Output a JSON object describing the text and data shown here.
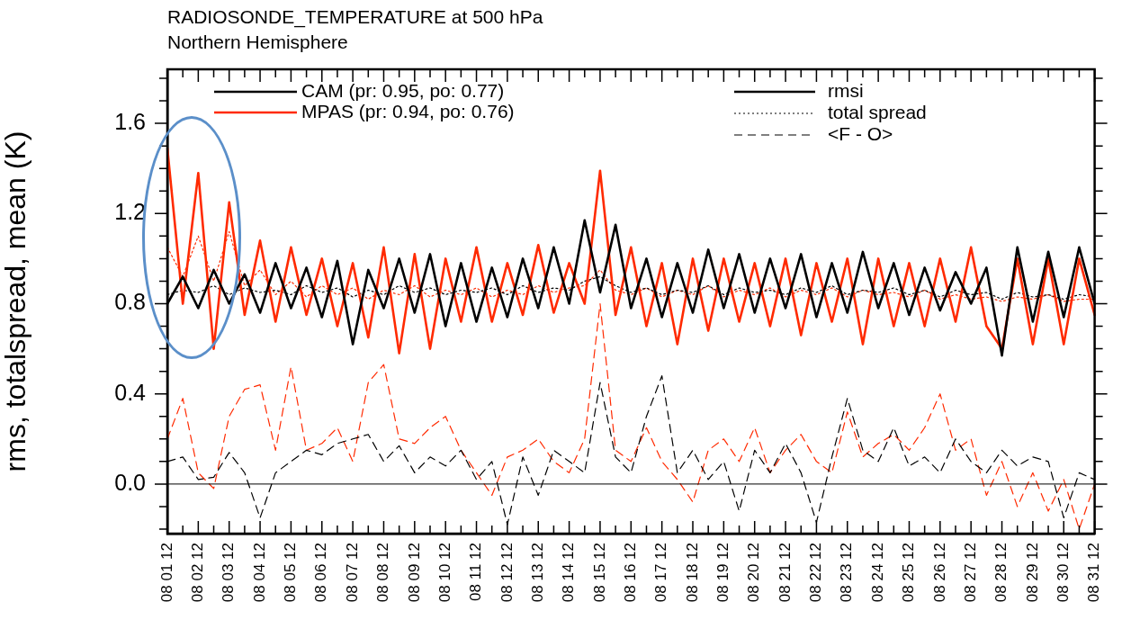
{
  "chart_data": {
    "type": "line",
    "title": "RADIOSONDE_TEMPERATURE at 500 hPa",
    "subtitle": "Northern Hemisphere",
    "ylabel": "rms, totalspread, mean (K)",
    "categories": [
      "08 01 12",
      null,
      "08 02 12",
      null,
      "08 03 12",
      null,
      "08 04 12",
      null,
      "08 05 12",
      null,
      "08 06 12",
      null,
      "08 07 12",
      null,
      "08 08 12",
      null,
      "08 09 12",
      null,
      "08 10 12",
      null,
      "08 11 12",
      null,
      "08 12 12",
      null,
      "08 13 12",
      null,
      "08 14 12",
      null,
      "08 15 12",
      null,
      "08 16 12",
      null,
      "08 17 12",
      null,
      "08 18 12",
      null,
      "08 19 12",
      null,
      "08 20 12",
      null,
      "08 21 12",
      null,
      "08 22 12",
      null,
      "08 23 12",
      null,
      "08 24 12",
      null,
      "08 25 12",
      null,
      "08 26 12",
      null,
      "08 27 12",
      null,
      "08 28 12",
      null,
      "08 29 12",
      null,
      "08 30 12",
      null,
      "08 31 12"
    ],
    "series": [
      {
        "name": "CAM (pr: 0.95, po: 0.77)",
        "color": "#000000",
        "line_style": "solid",
        "values": [
          0.8,
          0.92,
          0.78,
          0.95,
          0.8,
          0.93,
          0.76,
          0.98,
          0.78,
          0.96,
          0.74,
          0.99,
          0.62,
          0.95,
          0.78,
          1.0,
          0.76,
          1.02,
          0.7,
          0.98,
          0.72,
          0.96,
          0.74,
          1.0,
          0.78,
          1.05,
          0.8,
          1.17,
          0.85,
          1.15,
          0.78,
          1.0,
          0.74,
          0.98,
          0.76,
          1.04,
          0.78,
          1.02,
          0.76,
          1.0,
          0.78,
          1.02,
          0.74,
          0.98,
          0.76,
          1.03,
          0.78,
          0.98,
          0.75,
          0.96,
          0.77,
          0.94,
          0.8,
          0.96,
          0.57,
          1.05,
          0.72,
          1.03,
          0.74,
          1.05,
          0.8
        ]
      },
      {
        "name": "MPAS (pr: 0.94, po: 0.76)",
        "color": "#ff2a00",
        "line_style": "solid",
        "values": [
          1.49,
          0.8,
          1.38,
          0.6,
          1.25,
          0.75,
          1.08,
          0.72,
          1.05,
          0.75,
          1.0,
          0.7,
          0.98,
          0.65,
          1.05,
          0.58,
          1.02,
          0.6,
          1.0,
          0.72,
          1.05,
          0.72,
          0.98,
          0.75,
          1.06,
          0.76,
          0.98,
          0.8,
          1.39,
          0.75,
          1.05,
          0.7,
          0.98,
          0.62,
          1.0,
          0.68,
          1.0,
          0.72,
          0.98,
          0.7,
          1.0,
          0.66,
          0.98,
          0.72,
          1.0,
          0.62,
          1.0,
          0.7,
          0.98,
          0.7,
          1.0,
          0.72,
          1.05,
          0.7,
          0.6,
          1.0,
          0.62,
          1.0,
          0.62,
          1.0,
          0.75
        ]
      },
      {
        "color": "#000000",
        "line_style": "dotted",
        "values": [
          0.84,
          0.86,
          0.85,
          0.88,
          0.84,
          0.87,
          0.85,
          0.86,
          0.84,
          0.88,
          0.85,
          0.87,
          0.83,
          0.86,
          0.84,
          0.88,
          0.85,
          0.87,
          0.84,
          0.86,
          0.85,
          0.87,
          0.84,
          0.88,
          0.85,
          0.87,
          0.86,
          0.9,
          0.92,
          0.88,
          0.85,
          0.87,
          0.84,
          0.86,
          0.85,
          0.88,
          0.84,
          0.87,
          0.85,
          0.86,
          0.84,
          0.87,
          0.85,
          0.88,
          0.84,
          0.86,
          0.85,
          0.87,
          0.84,
          0.86,
          0.83,
          0.86,
          0.84,
          0.85,
          0.82,
          0.85,
          0.83,
          0.84,
          0.82,
          0.84,
          0.83
        ]
      },
      {
        "color": "#ff2a00",
        "line_style": "dotted",
        "values": [
          1.05,
          0.92,
          1.1,
          0.9,
          1.12,
          0.88,
          0.95,
          0.84,
          0.9,
          0.83,
          0.88,
          0.84,
          0.87,
          0.82,
          0.86,
          0.84,
          0.88,
          0.83,
          0.86,
          0.84,
          0.87,
          0.83,
          0.86,
          0.84,
          0.88,
          0.85,
          0.87,
          0.88,
          0.95,
          0.86,
          0.84,
          0.87,
          0.83,
          0.86,
          0.84,
          0.88,
          0.83,
          0.86,
          0.84,
          0.87,
          0.83,
          0.86,
          0.84,
          0.87,
          0.83,
          0.86,
          0.84,
          0.85,
          0.83,
          0.86,
          0.82,
          0.84,
          0.82,
          0.83,
          0.81,
          0.83,
          0.82,
          0.84,
          0.81,
          0.82,
          0.82
        ]
      },
      {
        "color": "#000000",
        "line_style": "dashed",
        "values": [
          0.1,
          0.12,
          0.02,
          0.03,
          0.14,
          0.05,
          -0.15,
          0.05,
          0.1,
          0.15,
          0.13,
          0.18,
          0.2,
          0.22,
          0.1,
          0.17,
          0.05,
          0.12,
          0.08,
          0.15,
          0.02,
          0.1,
          -0.18,
          0.12,
          -0.05,
          0.15,
          0.1,
          0.05,
          0.45,
          0.12,
          0.05,
          0.3,
          0.48,
          0.05,
          0.15,
          0.02,
          0.1,
          -0.12,
          0.15,
          0.05,
          0.18,
          0.05,
          -0.17,
          0.12,
          0.38,
          0.15,
          0.1,
          0.25,
          0.08,
          0.12,
          0.05,
          0.2,
          0.1,
          0.05,
          0.15,
          0.08,
          0.12,
          0.1,
          -0.15,
          0.05,
          0.02
        ]
      },
      {
        "color": "#ff2a00",
        "line_style": "dashed",
        "values": [
          0.2,
          0.38,
          0.05,
          -0.02,
          0.3,
          0.42,
          0.44,
          0.15,
          0.52,
          0.15,
          0.18,
          0.25,
          0.1,
          0.45,
          0.53,
          0.2,
          0.18,
          0.25,
          0.3,
          0.15,
          0.05,
          -0.05,
          0.12,
          0.15,
          0.2,
          0.1,
          0.05,
          0.2,
          0.8,
          0.15,
          0.1,
          0.25,
          0.1,
          0.02,
          -0.08,
          0.15,
          0.2,
          0.1,
          0.25,
          0.05,
          0.15,
          0.22,
          0.1,
          0.05,
          0.32,
          0.12,
          0.18,
          0.22,
          0.15,
          0.25,
          0.4,
          0.15,
          0.2,
          -0.05,
          0.1,
          -0.1,
          0.05,
          -0.12,
          0.02,
          -0.2,
          0.0
        ]
      }
    ],
    "ylim": [
      -0.22,
      1.84
    ],
    "yticks": [
      {
        "value": -0.2,
        "label": null
      },
      {
        "value": -0.1,
        "label": null
      },
      {
        "value": 0,
        "label": "0.0"
      },
      {
        "value": 0.1,
        "label": null
      },
      {
        "value": 0.2,
        "label": null
      },
      {
        "value": 0.3,
        "label": null
      },
      {
        "value": 0.4,
        "label": "0.4"
      },
      {
        "value": 0.5,
        "label": null
      },
      {
        "value": 0.6,
        "label": null
      },
      {
        "value": 0.7,
        "label": null
      },
      {
        "value": 0.8,
        "label": "0.8"
      },
      {
        "value": 0.9,
        "label": null
      },
      {
        "value": 1.0,
        "label": null
      },
      {
        "value": 1.1,
        "label": null
      },
      {
        "value": 1.2,
        "label": "1.2"
      },
      {
        "value": 1.3,
        "label": null
      },
      {
        "value": 1.4,
        "label": null
      },
      {
        "value": 1.5,
        "label": null
      },
      {
        "value": 1.6,
        "label": "1.6"
      },
      {
        "value": 1.7,
        "label": null
      },
      {
        "value": 1.8,
        "label": null
      }
    ],
    "ref_lines": [
      {
        "axis": "y",
        "value": 0,
        "color": "#000000"
      }
    ],
    "annotations": [
      "rmsi",
      "total spread",
      "<F - O>"
    ],
    "legend": "top left",
    "marker": "none",
    "grid": false
  }
}
